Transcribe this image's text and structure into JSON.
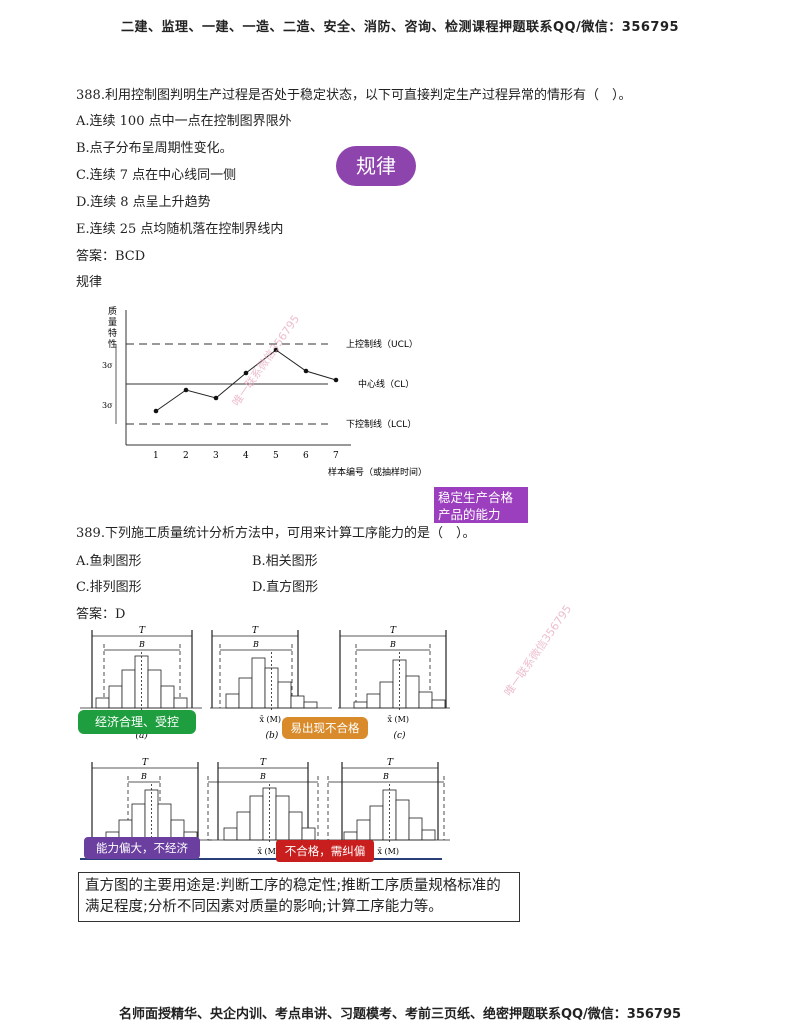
{
  "header": {
    "text": "二建、监理、一建、一造、二造、安全、消防、咨询、检测课程押题联系QQ/微信：356795"
  },
  "q388": {
    "stem": "388.利用控制图判明生产过程是否处于稳定状态，以下可直接判定生产过程异常的情形有（　）。",
    "options": [
      "A.连续 100 点中一点在控制图界限外",
      "B.点子分布呈周期性变化。",
      "C.连续 7 点在中心线同一侧",
      "D.连续 8 点呈上升趋势",
      "E.连续 25 点均随机落在控制界线内"
    ],
    "answer": "答案：BCD",
    "note": "规律",
    "bubble": "规律"
  },
  "control_chart": {
    "y_title": [
      "质",
      "量",
      "特",
      "性"
    ],
    "ucl_label": "上控制线（UCL）",
    "cl_label": "中心线（CL）",
    "lcl_label": "下控制线（LCL）",
    "x_label": "样本编号（或抽样时间）",
    "sigma_label": "3σ",
    "points": [
      1,
      2,
      3,
      4,
      5,
      6,
      7
    ],
    "values": [
      -1.35,
      -0.3,
      -0.7,
      0.55,
      1.7,
      0.65,
      0.2
    ]
  },
  "q389": {
    "stem": "389.下列施工质量统计分析方法中，可用来计算工序能力的是（　）。",
    "options": [
      "A.鱼刺图形",
      "B.相关图形",
      "C.排列图形",
      "D.直方图形"
    ],
    "answer": "答案：D",
    "purple_note": "稳定生产合格产品的能力"
  },
  "histograms": {
    "t_label": "T",
    "b_label": "B",
    "mean_label": "x̄ (M)",
    "captions": [
      "(a)",
      "(b)",
      "(c)"
    ],
    "tags": {
      "green": "经济合理、受控",
      "orange": "易出现不合格",
      "violet": "能力偏大，不经济",
      "red": "不合格，需纠偏"
    }
  },
  "summary": "直方图的主要用途是:判断工序的稳定性;推断工序质量规格标准的满足程度;分析不同因素对质量的影响;计算工序能力等。",
  "watermark": "唯一联系微信356795",
  "footer": {
    "text": "名师面授精华、央企内训、考点串讲、习题模考、考前三页纸、绝密押题联系QQ/微信：356795"
  }
}
